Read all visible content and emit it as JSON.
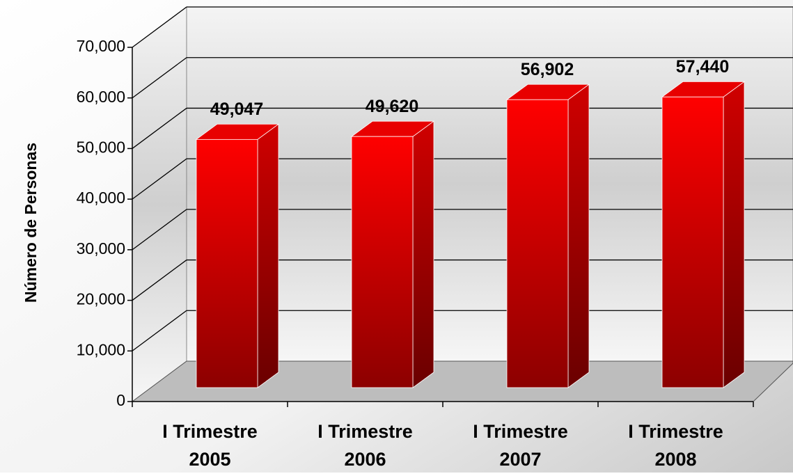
{
  "chart_data": {
    "type": "bar3d",
    "y_axis_label": "Número de Personas",
    "categories": [
      [
        "I Trimestre",
        "2005"
      ],
      [
        "I Trimestre",
        "2006"
      ],
      [
        "I Trimestre",
        "2007"
      ],
      [
        "I Trimestre",
        "2008"
      ]
    ],
    "values": [
      49047,
      49620,
      56902,
      57440
    ],
    "value_labels": [
      "49,047",
      "49,620",
      "56,902",
      "57,440"
    ],
    "color": "#e00000",
    "ylim": [
      0,
      70000
    ],
    "yticks": [
      0,
      {
        "value": 10000,
        "label": "10,000"
      },
      {
        "value": 20000,
        "label": "20,000"
      },
      {
        "value": 30000,
        "label": "30,000"
      },
      {
        "value": 40000,
        "label": "40,000"
      },
      {
        "value": 50000,
        "label": "50,000"
      },
      {
        "value": 60000,
        "label": "60,000"
      },
      {
        "value": 70000,
        "label": "70,000"
      }
    ],
    "grid": true
  }
}
